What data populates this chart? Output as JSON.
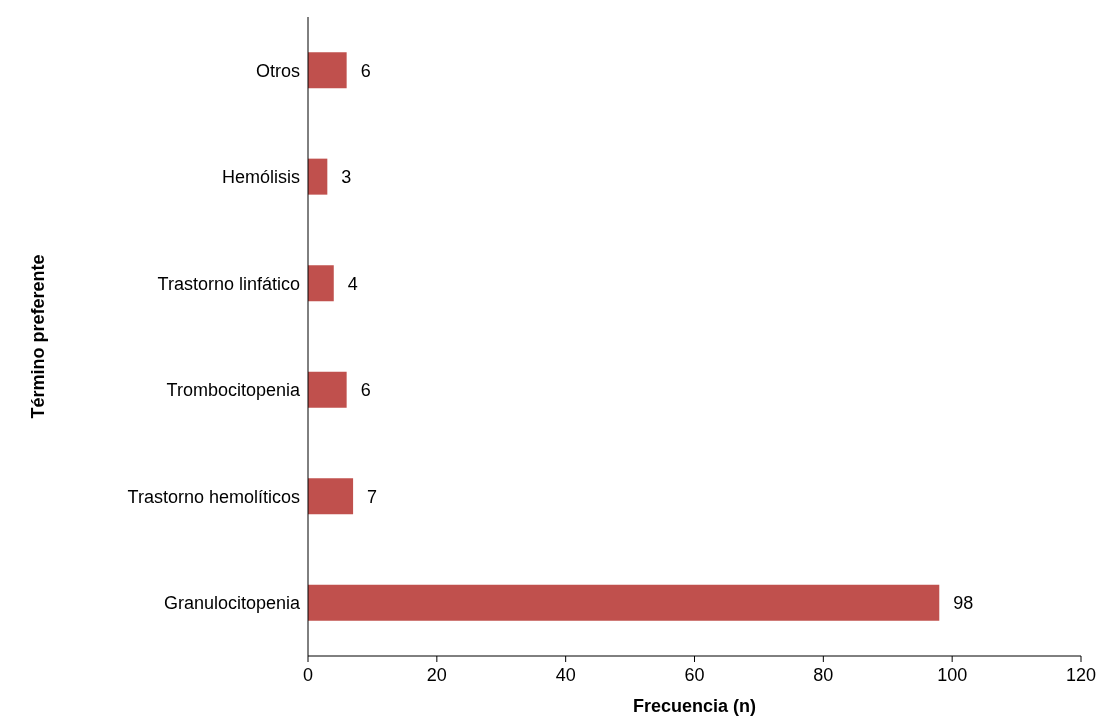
{
  "chart_data": {
    "type": "bar",
    "orientation": "horizontal",
    "xlabel": "Frecuencia (n)",
    "ylabel": "Término preferente",
    "categories": [
      "Otros",
      "Hemólisis",
      "Trastorno linfático",
      "Trombocitopenia",
      "Trastorno hemolíticos",
      "Granulocitopenia"
    ],
    "values": [
      6,
      3,
      4,
      6,
      7,
      98
    ],
    "color": "#c0504d",
    "xlim": [
      0,
      120
    ],
    "xticks": [
      0,
      20,
      40,
      60,
      80,
      100,
      120
    ],
    "grid": false,
    "data_labels": true,
    "legend": false
  }
}
